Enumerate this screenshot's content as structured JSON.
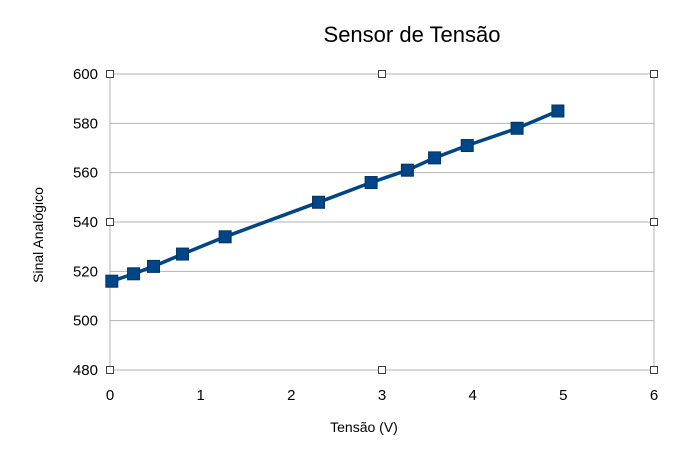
{
  "chart_data": {
    "type": "line",
    "title": "Sensor de Tensão",
    "xlabel": "Tensão (V)",
    "ylabel": "Sinal Analógico",
    "xlim": [
      0,
      6
    ],
    "ylim": [
      480,
      600
    ],
    "xticks": [
      "0",
      "1",
      "2",
      "3",
      "4",
      "5",
      "6"
    ],
    "yticks": [
      "480",
      "500",
      "520",
      "540",
      "560",
      "580",
      "600"
    ],
    "grid": "horizontal",
    "legend": "none",
    "series": [
      {
        "color": "#004586",
        "marker": "square",
        "points": [
          {
            "x": 0.02,
            "y": 516
          },
          {
            "x": 0.26,
            "y": 519
          },
          {
            "x": 0.48,
            "y": 522
          },
          {
            "x": 0.8,
            "y": 527
          },
          {
            "x": 1.27,
            "y": 534
          },
          {
            "x": 2.3,
            "y": 548
          },
          {
            "x": 2.88,
            "y": 556
          },
          {
            "x": 3.28,
            "y": 561
          },
          {
            "x": 3.58,
            "y": 566
          },
          {
            "x": 3.94,
            "y": 571
          },
          {
            "x": 4.49,
            "y": 578
          },
          {
            "x": 4.94,
            "y": 585
          }
        ]
      }
    ]
  }
}
